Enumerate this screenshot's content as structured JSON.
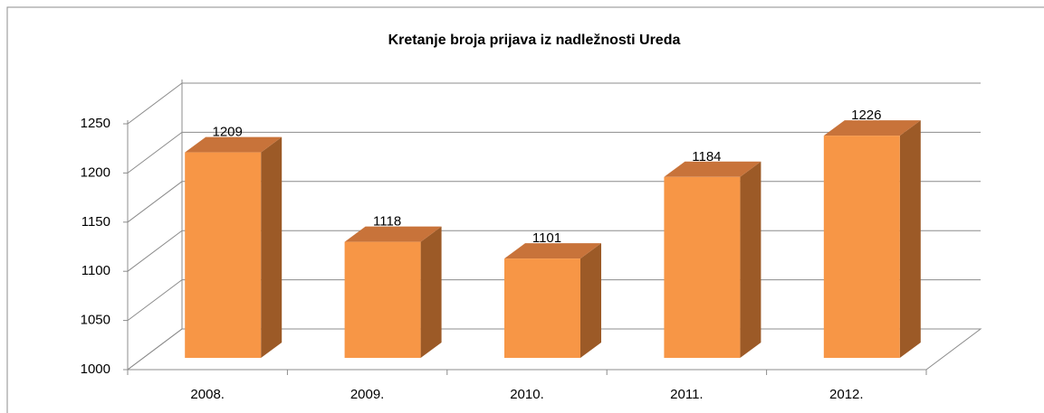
{
  "chart_data": {
    "type": "bar3d",
    "title": "Kretanje broja prijava iz nadležnosti Ureda",
    "categories": [
      "2008.",
      "2009.",
      "2010.",
      "2011.",
      "2012."
    ],
    "values": [
      1209,
      1118,
      1101,
      1184,
      1226
    ],
    "color": "#f79646",
    "ylim": [
      1000,
      1250
    ],
    "yticks": [
      1000,
      1050,
      1100,
      1150,
      1200,
      1250
    ],
    "grid": true
  }
}
